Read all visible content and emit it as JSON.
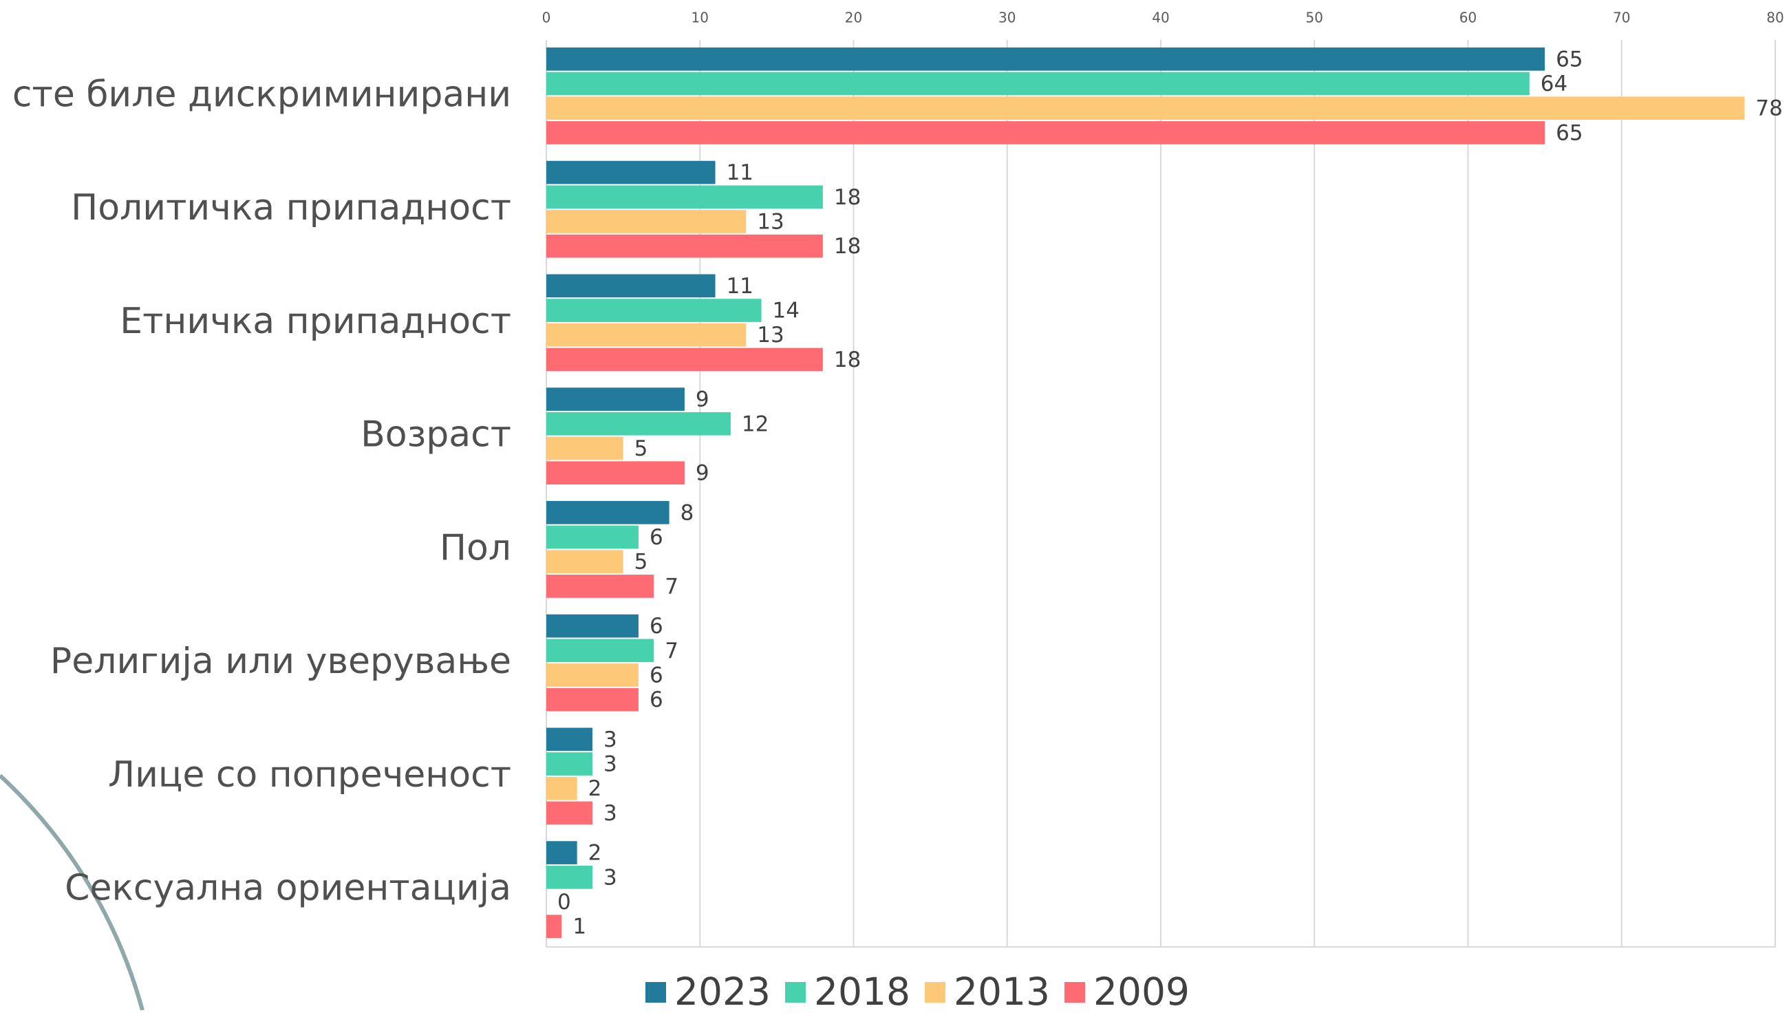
{
  "chart_data": {
    "type": "bar",
    "orientation": "horizontal",
    "categories": [
      "Не сте биле дискриминирани",
      "Политичка припадност",
      "Етничка припадност",
      "Возраст",
      "Пол",
      "Религија или уверување",
      "Лице со попреченост",
      "Сексуална ориентација"
    ],
    "series": [
      {
        "name": "2023",
        "color": "#237b9c",
        "values": [
          65,
          11,
          11,
          9,
          8,
          6,
          3,
          2
        ]
      },
      {
        "name": "2018",
        "color": "#47d1ad",
        "values": [
          64,
          18,
          14,
          12,
          6,
          7,
          3,
          3
        ]
      },
      {
        "name": "2013",
        "color": "#fdc877",
        "values": [
          78,
          13,
          13,
          5,
          5,
          6,
          2,
          0
        ]
      },
      {
        "name": "2009",
        "color": "#fe6b73",
        "values": [
          65,
          18,
          18,
          9,
          7,
          6,
          3,
          1
        ]
      }
    ],
    "xlim": [
      0,
      80
    ],
    "xticks": [
      0,
      10,
      20,
      30,
      40,
      50,
      60,
      70,
      80
    ],
    "grid": true,
    "legend": "bottom"
  }
}
